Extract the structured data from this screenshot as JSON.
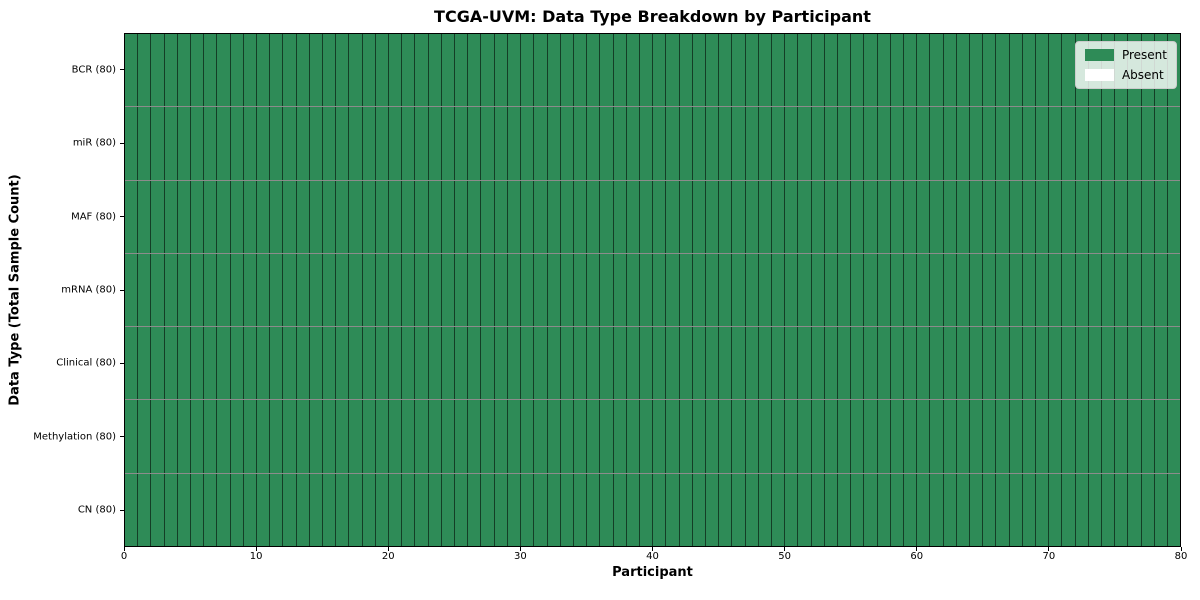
{
  "colors": {
    "present": "#2e8b57",
    "absent": "#ffffff",
    "cell_border": "#0000008f",
    "row_border": "#00000073",
    "spine": "#000000",
    "legend_border": "#cccccc",
    "legend_bg": "#ffffffcc"
  },
  "legend": {
    "items": [
      {
        "label": "Present",
        "swatch_color": "#2e8b57"
      },
      {
        "label": "Absent",
        "swatch_color": "#ffffff"
      }
    ]
  },
  "chart_data": {
    "type": "heatmap",
    "title": "TCGA-UVM: Data Type Breakdown by Participant",
    "xlabel": "Participant",
    "ylabel": "Data Type (Total Sample Count)",
    "xlim": [
      0,
      80
    ],
    "x_ticks": [
      0,
      10,
      20,
      30,
      40,
      50,
      60,
      70,
      80
    ],
    "participants": 80,
    "legend_entries": [
      "Present",
      "Absent"
    ],
    "legend_position": "upper right",
    "grid": "one cell per participant per data type, black cell edges",
    "rows": [
      {
        "label": "BCR (80)",
        "data_type": "BCR",
        "total_samples": 80,
        "present_count": 80,
        "absent_count": 0
      },
      {
        "label": "miR (80)",
        "data_type": "miR",
        "total_samples": 80,
        "present_count": 80,
        "absent_count": 0
      },
      {
        "label": "MAF (80)",
        "data_type": "MAF",
        "total_samples": 80,
        "present_count": 80,
        "absent_count": 0
      },
      {
        "label": "mRNA (80)",
        "data_type": "mRNA",
        "total_samples": 80,
        "present_count": 80,
        "absent_count": 0
      },
      {
        "label": "Clinical (80)",
        "data_type": "Clinical",
        "total_samples": 80,
        "present_count": 80,
        "absent_count": 0
      },
      {
        "label": "Methylation (80)",
        "data_type": "Methylation",
        "total_samples": 80,
        "present_count": 80,
        "absent_count": 0
      },
      {
        "label": "CN (80)",
        "data_type": "CN",
        "total_samples": 80,
        "present_count": 80,
        "absent_count": 0
      }
    ]
  }
}
